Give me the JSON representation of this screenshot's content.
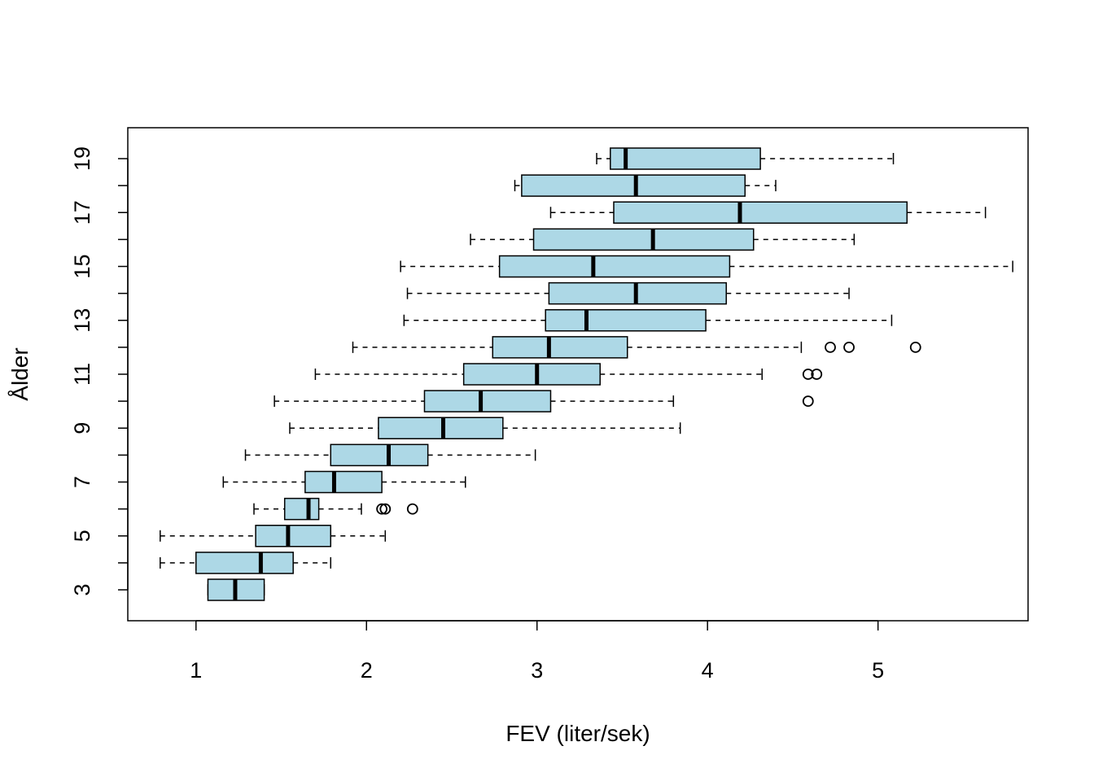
{
  "chart_data": {
    "type": "boxplot",
    "orientation": "horizontal",
    "title": "",
    "xlabel": "FEV (liter/sek)",
    "ylabel": "Ålder",
    "xlim": [
      0.6,
      5.88
    ],
    "x_ticks": [
      1,
      2,
      3,
      4,
      5
    ],
    "y_tick_labels": [
      "3",
      "5",
      "7",
      "9",
      "11",
      "13",
      "15",
      "17",
      "19"
    ],
    "box_color": "#add8e6",
    "grid": false,
    "categories": [
      "3",
      "4",
      "5",
      "6",
      "7",
      "8",
      "9",
      "10",
      "11",
      "12",
      "13",
      "14",
      "15",
      "16",
      "17",
      "18",
      "19"
    ],
    "boxes": [
      {
        "group": "3",
        "whisker_low": 1.07,
        "q1": 1.07,
        "median": 1.23,
        "q3": 1.4,
        "whisker_high": 1.4,
        "outliers": []
      },
      {
        "group": "4",
        "whisker_low": 0.79,
        "q1": 1.0,
        "median": 1.38,
        "q3": 1.57,
        "whisker_high": 1.79,
        "outliers": []
      },
      {
        "group": "5",
        "whisker_low": 0.79,
        "q1": 1.35,
        "median": 1.54,
        "q3": 1.79,
        "whisker_high": 2.11,
        "outliers": []
      },
      {
        "group": "6",
        "whisker_low": 1.34,
        "q1": 1.52,
        "median": 1.66,
        "q3": 1.72,
        "whisker_high": 1.97,
        "outliers": [
          2.09,
          2.11,
          2.27
        ]
      },
      {
        "group": "7",
        "whisker_low": 1.16,
        "q1": 1.64,
        "median": 1.81,
        "q3": 2.09,
        "whisker_high": 2.58,
        "outliers": []
      },
      {
        "group": "8",
        "whisker_low": 1.29,
        "q1": 1.79,
        "median": 2.13,
        "q3": 2.36,
        "whisker_high": 2.99,
        "outliers": []
      },
      {
        "group": "9",
        "whisker_low": 1.55,
        "q1": 2.07,
        "median": 2.45,
        "q3": 2.8,
        "whisker_high": 3.84,
        "outliers": []
      },
      {
        "group": "10",
        "whisker_low": 1.46,
        "q1": 2.34,
        "median": 2.67,
        "q3": 3.08,
        "whisker_high": 3.8,
        "outliers": [
          4.59
        ]
      },
      {
        "group": "11",
        "whisker_low": 1.7,
        "q1": 2.57,
        "median": 3.0,
        "q3": 3.37,
        "whisker_high": 4.32,
        "outliers": [
          4.59,
          4.64
        ]
      },
      {
        "group": "12",
        "whisker_low": 1.92,
        "q1": 2.74,
        "median": 3.07,
        "q3": 3.53,
        "whisker_high": 4.55,
        "outliers": [
          4.72,
          4.83,
          5.22
        ]
      },
      {
        "group": "13",
        "whisker_low": 2.22,
        "q1": 3.05,
        "median": 3.29,
        "q3": 3.99,
        "whisker_high": 5.08,
        "outliers": []
      },
      {
        "group": "14",
        "whisker_low": 2.24,
        "q1": 3.07,
        "median": 3.58,
        "q3": 4.11,
        "whisker_high": 4.83,
        "outliers": []
      },
      {
        "group": "15",
        "whisker_low": 2.2,
        "q1": 2.78,
        "median": 3.33,
        "q3": 4.13,
        "whisker_high": 5.79,
        "outliers": []
      },
      {
        "group": "16",
        "whisker_low": 2.61,
        "q1": 2.98,
        "median": 3.68,
        "q3": 4.27,
        "whisker_high": 4.86,
        "outliers": []
      },
      {
        "group": "17",
        "whisker_low": 3.08,
        "q1": 3.45,
        "median": 4.19,
        "q3": 5.17,
        "whisker_high": 5.63,
        "outliers": []
      },
      {
        "group": "18",
        "whisker_low": 2.87,
        "q1": 2.91,
        "median": 3.58,
        "q3": 4.22,
        "whisker_high": 4.4,
        "outliers": []
      },
      {
        "group": "19",
        "whisker_low": 3.35,
        "q1": 3.43,
        "median": 3.52,
        "q3": 4.31,
        "whisker_high": 5.09,
        "outliers": []
      }
    ]
  }
}
